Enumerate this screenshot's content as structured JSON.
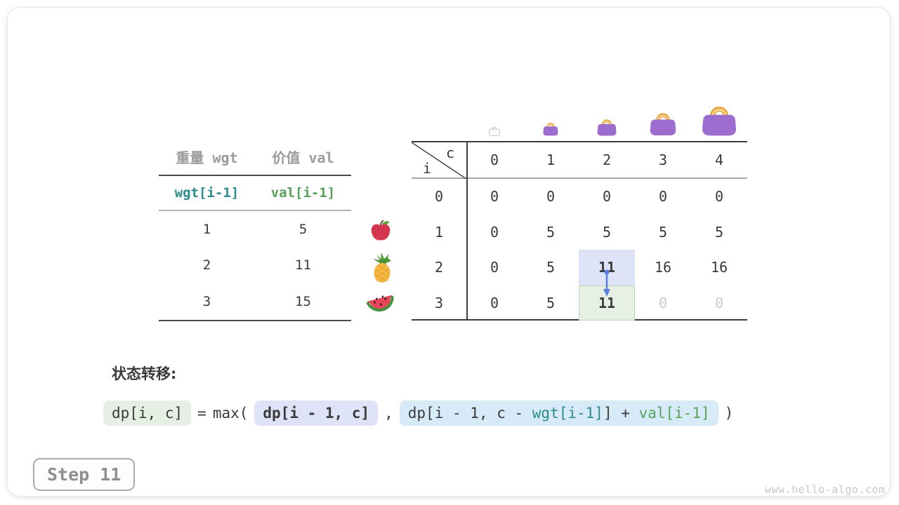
{
  "items_table": {
    "col_headers": [
      "重量 wgt",
      "价值 val"
    ],
    "sub_headers": {
      "wgt": "wgt[i-1]",
      "val": "val[i-1]"
    },
    "rows": [
      [
        "1",
        "5"
      ],
      [
        "2",
        "11"
      ],
      [
        "3",
        "15"
      ]
    ],
    "colors": {
      "header_gray": "#9b9b9b",
      "wgt_teal": "#2e8b8b",
      "val_green": "#58a158"
    }
  },
  "fruit_icons": [
    "apple-icon",
    "pineapple-icon",
    "watermelon-icon"
  ],
  "bag_icons": {
    "count": 5,
    "style": "capacity-0-empty-gray, capacities-1-4 purple increasing size",
    "body_color": "#9c6ccf",
    "handle_color": "#e8a23a",
    "handle_inner": "#f8d289",
    "empty_stroke": "#c6c6c6"
  },
  "dp_table": {
    "corner": {
      "row_var": "i",
      "col_var": "c"
    },
    "col_headers": [
      "0",
      "1",
      "2",
      "3",
      "4"
    ],
    "row_headers": [
      "0",
      "1",
      "2",
      "3"
    ],
    "cells": [
      [
        "0",
        "0",
        "0",
        "0",
        "0"
      ],
      [
        "0",
        "5",
        "5",
        "5",
        "5"
      ],
      [
        "0",
        "5",
        "11",
        "16",
        "16"
      ],
      [
        "0",
        "5",
        "11",
        "0",
        "0"
      ]
    ],
    "source_cell": {
      "row": 2,
      "col": 2,
      "bg": "#dee3f8"
    },
    "target_cell": {
      "row": 3,
      "col": 2,
      "bg": "#e6f0e3",
      "border": "#b9d6b9"
    },
    "dimmed_cells": [
      {
        "row": 3,
        "col": 3
      },
      {
        "row": 3,
        "col": 4
      }
    ],
    "arrow_color": "#5b7ce3"
  },
  "formula": {
    "label": "状态转移:",
    "lhs": "dp[i, c]",
    "equals": "=",
    "max_open": "max(",
    "option1": "dp[i - 1, c]",
    "comma": ",",
    "option2": {
      "prefix": "dp[i - 1, c - ",
      "wgt": "wgt[i-1]",
      "mid": "] + ",
      "val": "val[i-1]"
    },
    "close": ")"
  },
  "step_badge": "Step 11",
  "watermark": "www.hello-algo.com"
}
